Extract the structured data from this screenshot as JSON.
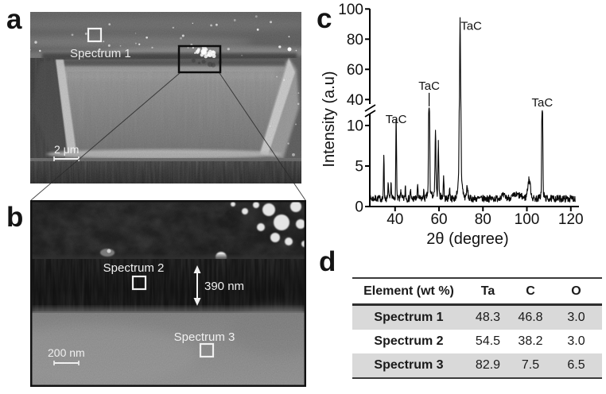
{
  "panels": {
    "a": {
      "label": "a",
      "spectrum_marker_label": "Spectrum 1",
      "scale_bar_label": "2 μm"
    },
    "b": {
      "label": "b",
      "spectrum2_label": "Spectrum 2",
      "spectrum3_label": "Spectrum 3",
      "layer_thickness_label": "390 nm",
      "scale_bar_label": "200 nm"
    },
    "c": {
      "label": "c"
    },
    "d": {
      "label": "d"
    }
  },
  "chart_data": {
    "type": "line",
    "title": "",
    "xlabel": "2θ (degree)",
    "ylabel": "Intensity (a.u)",
    "x_range": [
      28.5,
      122
    ],
    "x_ticks": [
      40,
      60,
      80,
      100,
      120
    ],
    "y_broken_axis": {
      "lower_ticks": [
        0,
        5,
        10
      ],
      "upper_ticks": [
        40,
        60,
        80,
        100
      ],
      "lower_max_visible": 11.3,
      "upper_min_visible": 37,
      "upper_max": 100
    },
    "grid": false,
    "phase_label": "TaC",
    "baseline_intensity": 1.0,
    "peaks": [
      {
        "two_theta": 34.9,
        "intensity": 5.3,
        "width": 0.22
      },
      {
        "two_theta": 36.9,
        "intensity": 1.9,
        "width": 0.2
      },
      {
        "two_theta": 38.2,
        "intensity": 2.0,
        "width": 0.2
      },
      {
        "two_theta": 40.5,
        "intensity": 9.7,
        "width": 0.24,
        "label": "TaC"
      },
      {
        "two_theta": 42.6,
        "intensity": 1.2,
        "width": 0.2
      },
      {
        "two_theta": 44.7,
        "intensity": 1.6,
        "width": 0.2
      },
      {
        "two_theta": 47.0,
        "intensity": 1.1,
        "width": 0.2
      },
      {
        "two_theta": 50.3,
        "intensity": 1.8,
        "width": 0.22
      },
      {
        "two_theta": 53.0,
        "intensity": 1.0,
        "width": 0.2
      },
      {
        "two_theta": 55.5,
        "intensity": 26,
        "width": 0.26,
        "label": "TaC",
        "label_leader": true,
        "label_dy": -24
      },
      {
        "two_theta": 58.4,
        "intensity": 7.6,
        "width": 0.3
      },
      {
        "two_theta": 59.7,
        "intensity": 6.4,
        "width": 0.28
      },
      {
        "two_theta": 62.1,
        "intensity": 2.7,
        "width": 0.24
      },
      {
        "two_theta": 64.8,
        "intensity": 1.2,
        "width": 0.3
      },
      {
        "two_theta": 69.6,
        "intensity": 90,
        "width": 0.3,
        "label": "TaC",
        "label_dx": 14,
        "label_dy": 7
      },
      {
        "two_theta": 72.8,
        "intensity": 1.3,
        "width": 0.5
      },
      {
        "two_theta": 101.0,
        "intensity": 2.3,
        "width": 0.9
      },
      {
        "two_theta": 107.0,
        "intensity": 20,
        "width": 0.26,
        "label": "TaC"
      }
    ]
  },
  "table": {
    "header": [
      "Element (wt %)",
      "Ta",
      "C",
      "O"
    ],
    "row_shade_color": "#d9d9d9",
    "rows": [
      {
        "name": "Spectrum 1",
        "values": [
          "48.3",
          "46.8",
          "3.0"
        ],
        "shaded": true
      },
      {
        "name": "Spectrum 2",
        "values": [
          "54.5",
          "38.2",
          "3.0"
        ],
        "shaded": false
      },
      {
        "name": "Spectrum 3",
        "values": [
          "82.9",
          "7.5",
          "6.5"
        ],
        "shaded": true
      }
    ]
  }
}
